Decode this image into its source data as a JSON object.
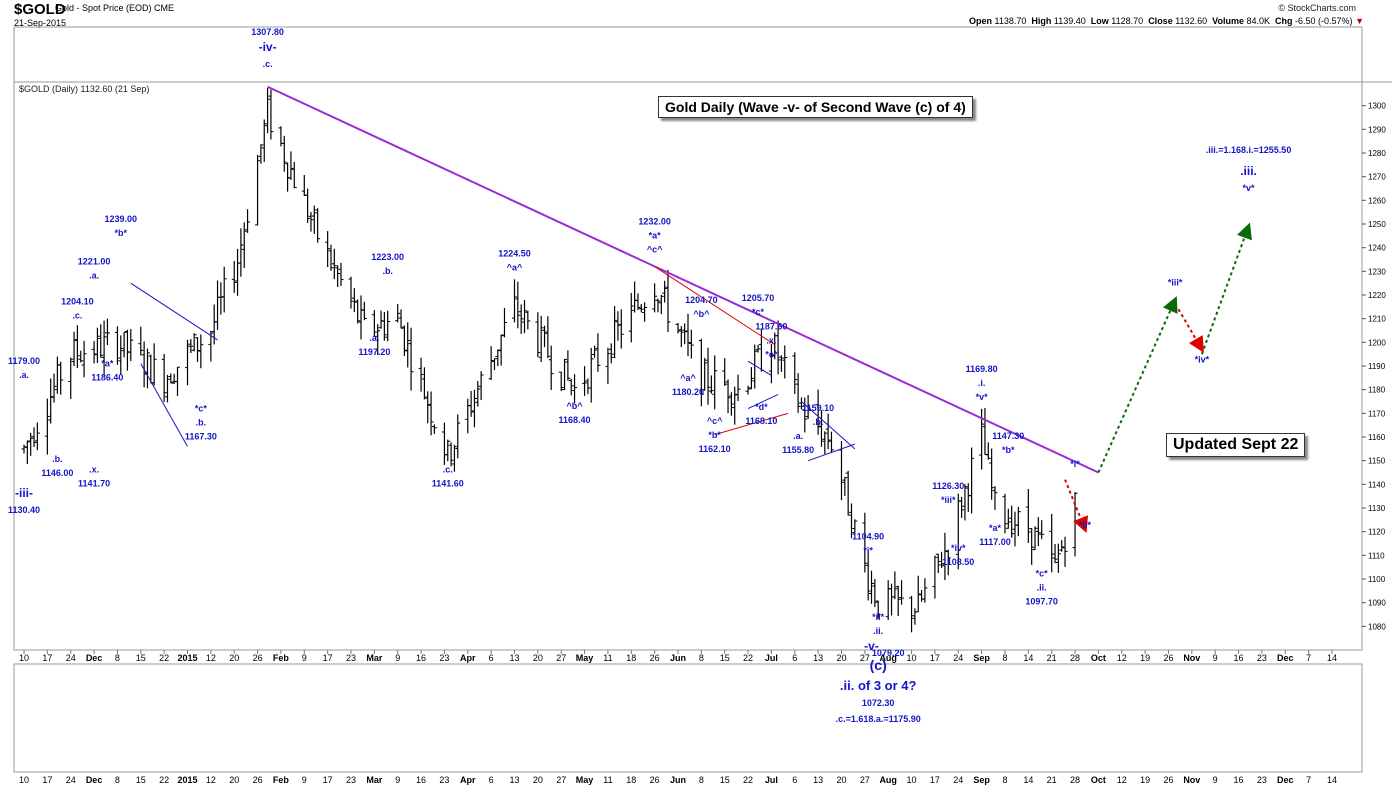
{
  "header": {
    "symbol": "$GOLD",
    "description": "Gold - Spot Price (EOD)",
    "exchange": "CME",
    "date": "21-Sep-2015",
    "brand": "© StockCharts.com",
    "open_label": "Open",
    "open": "1138.70",
    "high_label": "High",
    "high": "1139.40",
    "low_label": "Low",
    "low": "1128.70",
    "close_label": "Close",
    "close": "1132.60",
    "volume_label": "Volume",
    "volume": "84.0K",
    "chg_label": "Chg",
    "chg": "-6.50 (-0.57%)",
    "chg_arrow": "▼"
  },
  "legend_text": "$GOLD (Daily) 1132.60 (21 Sep)",
  "title_box": "Gold Daily (Wave -v- of Second Wave (c) of 4)",
  "updated_box": "Updated Sept 22",
  "colors": {
    "bars": "#000000",
    "annotations": "#1414c8",
    "trendline": "#9a2bd6",
    "red_line": "#e00000",
    "blue_line": "#1414c8",
    "green_arrow": "#0a6a0a",
    "red_arrow": "#e00000"
  },
  "chart_data": {
    "type": "ohlc",
    "ylim": [
      1070,
      1310
    ],
    "y_ticks": [
      1080,
      1090,
      1100,
      1110,
      1120,
      1130,
      1140,
      1150,
      1160,
      1170,
      1180,
      1190,
      1200,
      1210,
      1220,
      1230,
      1240,
      1250,
      1260,
      1270,
      1280,
      1290,
      1300
    ],
    "x_tick_labels": [
      "10",
      "17",
      "24",
      "Dec",
      "8",
      "15",
      "22",
      "2015",
      "12",
      "20",
      "26",
      "Feb",
      "9",
      "17",
      "23",
      "Mar",
      "9",
      "16",
      "23",
      "Apr",
      "6",
      "13",
      "20",
      "27",
      "May",
      "11",
      "18",
      "26",
      "Jun",
      "8",
      "15",
      "22",
      "Jul",
      "6",
      "13",
      "20",
      "27",
      "Aug",
      "10",
      "17",
      "24",
      "Sep",
      "8",
      "14",
      "21",
      "28",
      "Oct",
      "12",
      "19",
      "26",
      "Nov",
      "9",
      "16",
      "23",
      "Dec",
      "7",
      "14"
    ],
    "bold_tick_labels": [
      "Dec",
      "2015",
      "Feb",
      "Mar",
      "Apr",
      "May",
      "Jun",
      "Jul",
      "Aug",
      "Sep",
      "Oct",
      "Nov"
    ],
    "anchors": [
      {
        "date": "2014-11-10",
        "price": 1155
      },
      {
        "date": "2014-11-24",
        "price": 1195
      },
      {
        "date": "2014-12-08",
        "price": 1200
      },
      {
        "date": "2014-12-22",
        "price": 1185
      },
      {
        "date": "2015-01-05",
        "price": 1205
      },
      {
        "date": "2015-01-13",
        "price": 1235
      },
      {
        "date": "2015-01-22",
        "price": 1297
      },
      {
        "date": "2015-02-06",
        "price": 1245
      },
      {
        "date": "2015-02-20",
        "price": 1205
      },
      {
        "date": "2015-03-02",
        "price": 1210
      },
      {
        "date": "2015-03-17",
        "price": 1152
      },
      {
        "date": "2015-04-06",
        "price": 1215
      },
      {
        "date": "2015-04-24",
        "price": 1180
      },
      {
        "date": "2015-05-18",
        "price": 1225
      },
      {
        "date": "2015-06-01",
        "price": 1185
      },
      {
        "date": "2015-06-12",
        "price": 1180
      },
      {
        "date": "2015-06-22",
        "price": 1200
      },
      {
        "date": "2015-07-01",
        "price": 1172
      },
      {
        "date": "2015-07-10",
        "price": 1158
      },
      {
        "date": "2015-07-20",
        "price": 1105
      },
      {
        "date": "2015-07-24",
        "price": 1090
      },
      {
        "date": "2015-08-05",
        "price": 1088
      },
      {
        "date": "2015-08-14",
        "price": 1115
      },
      {
        "date": "2015-08-24",
        "price": 1160
      },
      {
        "date": "2015-08-28",
        "price": 1130
      },
      {
        "date": "2015-09-08",
        "price": 1120
      },
      {
        "date": "2015-09-15",
        "price": 1105
      },
      {
        "date": "2015-09-21",
        "price": 1132
      }
    ],
    "annotations": [
      {
        "t": "-iii-",
        "d": "2014-11-10",
        "p": 1130.4,
        "dy": -10,
        "size": 12
      },
      {
        "t": "1130.40",
        "d": "2014-11-10",
        "p": 1130.4,
        "dy": 6
      },
      {
        "t": "1179.00",
        "d": "2014-11-10",
        "p": 1179,
        "dy": -28
      },
      {
        "t": ".a.",
        "d": "2014-11-10",
        "p": 1179,
        "dy": -14
      },
      {
        "t": ".b.",
        "d": "2014-11-20",
        "p": 1146,
        "dy": -8
      },
      {
        "t": "1146.00",
        "d": "2014-11-20",
        "p": 1146,
        "dy": 6
      },
      {
        "t": "1204.10",
        "d": "2014-11-26",
        "p": 1204.1,
        "dy": -28
      },
      {
        "t": ".c.",
        "d": "2014-11-26",
        "p": 1204.1,
        "dy": -14
      },
      {
        "t": "1221.00",
        "d": "2014-12-01",
        "p": 1221,
        "dy": -28
      },
      {
        "t": ".a.",
        "d": "2014-12-01",
        "p": 1221,
        "dy": -14
      },
      {
        "t": ".x.",
        "d": "2014-12-01",
        "p": 1141.7,
        "dy": -8
      },
      {
        "t": "1141.70",
        "d": "2014-12-01",
        "p": 1141.7,
        "dy": 6
      },
      {
        "t": "1239.00",
        "d": "2014-12-09",
        "p": 1239,
        "dy": -28
      },
      {
        "t": "*b*",
        "d": "2014-12-09",
        "p": 1239,
        "dy": -14
      },
      {
        "t": "*a*",
        "d": "2014-12-05",
        "p": 1186.4,
        "dy": -8
      },
      {
        "t": "1186.40",
        "d": "2014-12-05",
        "p": 1186.4,
        "dy": 6
      },
      {
        "t": "*c*",
        "d": "2015-01-02",
        "p": 1167.3,
        "dy": -8
      },
      {
        "t": ".b.",
        "d": "2015-01-02",
        "p": 1167.3,
        "dy": 6
      },
      {
        "t": "1167.30",
        "d": "2015-01-02",
        "p": 1167.3,
        "dy": 20
      },
      {
        "t": "1307.80",
        "d": "2015-01-22",
        "p": 1307.8,
        "dy": -52
      },
      {
        "t": "-iv-",
        "d": "2015-01-22",
        "p": 1307.8,
        "dy": -36,
        "size": 12
      },
      {
        "t": ".c.",
        "d": "2015-01-22",
        "p": 1307.8,
        "dy": -20
      },
      {
        "t": "1223.00",
        "d": "2015-02-27",
        "p": 1223,
        "dy": -28
      },
      {
        "t": ".b.",
        "d": "2015-02-27",
        "p": 1223,
        "dy": -14
      },
      {
        "t": ".a.",
        "d": "2015-02-23",
        "p": 1197.2,
        "dy": -8
      },
      {
        "t": "1197.20",
        "d": "2015-02-23",
        "p": 1197.2,
        "dy": 6
      },
      {
        "t": ".c.",
        "d": "2015-03-17",
        "p": 1141.6,
        "dy": -8
      },
      {
        "t": "1141.60",
        "d": "2015-03-17",
        "p": 1141.6,
        "dy": 6
      },
      {
        "t": "1224.50",
        "d": "2015-04-06",
        "p": 1224.5,
        "dy": -28
      },
      {
        "t": "^a^",
        "d": "2015-04-06",
        "p": 1224.5,
        "dy": -14
      },
      {
        "t": "^b^",
        "d": "2015-04-24",
        "p": 1168.4,
        "dy": -8
      },
      {
        "t": "1168.40",
        "d": "2015-04-24",
        "p": 1168.4,
        "dy": 6
      },
      {
        "t": "1232.00",
        "d": "2015-05-18",
        "p": 1232,
        "dy": -42
      },
      {
        "t": "*a*",
        "d": "2015-05-18",
        "p": 1232,
        "dy": -28
      },
      {
        "t": "^c^",
        "d": "2015-05-18",
        "p": 1232,
        "dy": -14
      },
      {
        "t": "1204.70",
        "d": "2015-06-01",
        "p": 1204.7,
        "dy": -28
      },
      {
        "t": "^b^",
        "d": "2015-06-01",
        "p": 1204.7,
        "dy": -14
      },
      {
        "t": "^a^",
        "d": "2015-05-28",
        "p": 1180.2,
        "dy": -8
      },
      {
        "t": "1180.20",
        "d": "2015-05-28",
        "p": 1180.2,
        "dy": 6
      },
      {
        "t": "^c^",
        "d": "2015-06-05",
        "p": 1162.1,
        "dy": -8
      },
      {
        "t": "*b*",
        "d": "2015-06-05",
        "p": 1162.1,
        "dy": 6
      },
      {
        "t": "1162.10",
        "d": "2015-06-05",
        "p": 1162.1,
        "dy": 20
      },
      {
        "t": "1205.70",
        "d": "2015-06-18",
        "p": 1205.7,
        "dy": -28
      },
      {
        "t": "*c*",
        "d": "2015-06-18",
        "p": 1205.7,
        "dy": -14
      },
      {
        "t": "1187.60",
        "d": "2015-06-22",
        "p": 1187.6,
        "dy": -42
      },
      {
        "t": ".x.",
        "d": "2015-06-22",
        "p": 1187.6,
        "dy": -28
      },
      {
        "t": "*e*",
        "d": "2015-06-22",
        "p": 1187.6,
        "dy": -14
      },
      {
        "t": "*d*",
        "d": "2015-06-19",
        "p": 1168.1,
        "dy": -8
      },
      {
        "t": "1168.10",
        "d": "2015-06-19",
        "p": 1168.1,
        "dy": 6
      },
      {
        "t": "1159.10",
        "d": "2015-07-06",
        "p": 1159.1,
        "dy": -28
      },
      {
        "t": ".b.",
        "d": "2015-07-06",
        "p": 1159.1,
        "dy": -14
      },
      {
        "t": ".a.",
        "d": "2015-06-30",
        "p": 1155.8,
        "dy": -8
      },
      {
        "t": "1155.80",
        "d": "2015-06-30",
        "p": 1155.8,
        "dy": 6
      },
      {
        "t": "1104.90",
        "d": "2015-07-21",
        "p": 1104.9,
        "dy": -28
      },
      {
        "t": "*i*",
        "d": "2015-07-21",
        "p": 1104.9,
        "dy": -14
      },
      {
        "t": "*ii*",
        "d": "2015-07-24",
        "p": 1079.2,
        "dy": -8
      },
      {
        "t": ".ii.",
        "d": "2015-07-24",
        "p": 1079.2,
        "dy": 6
      },
      {
        "t": "-v-",
        "d": "2015-07-22",
        "p": 1079.2,
        "dy": 22,
        "size": 12
      },
      {
        "t": "1079.20",
        "d": "2015-07-27",
        "p": 1079.2,
        "dy": 28
      },
      {
        "t": "(c)",
        "d": "2015-07-24",
        "p": 1079.2,
        "dy": 42,
        "size": 14
      },
      {
        "t": ".ii. of 3 or 4?",
        "d": "2015-07-24",
        "p": 1079.2,
        "dy": 62,
        "size": 13
      },
      {
        "t": "1072.30",
        "d": "2015-07-24",
        "p": 1079.2,
        "dy": 78
      },
      {
        "t": ".c.=1.618.a.=1175.90",
        "d": "2015-07-24",
        "p": 1079.2,
        "dy": 94
      },
      {
        "t": "1126.30",
        "d": "2015-08-14",
        "p": 1126.3,
        "dy": -28
      },
      {
        "t": "*iii*",
        "d": "2015-08-14",
        "p": 1126.3,
        "dy": -14
      },
      {
        "t": "*iv*",
        "d": "2015-08-17",
        "p": 1108.5,
        "dy": -8
      },
      {
        "t": "1108.50",
        "d": "2015-08-17",
        "p": 1108.5,
        "dy": 6
      },
      {
        "t": "1169.80",
        "d": "2015-08-24",
        "p": 1169.8,
        "dy": -42
      },
      {
        "t": ".i.",
        "d": "2015-08-24",
        "p": 1169.8,
        "dy": -28
      },
      {
        "t": "*v*",
        "d": "2015-08-24",
        "p": 1169.8,
        "dy": -14
      },
      {
        "t": "*a*",
        "d": "2015-08-28",
        "p": 1117,
        "dy": -8
      },
      {
        "t": "1117.00",
        "d": "2015-08-28",
        "p": 1117,
        "dy": 6
      },
      {
        "t": "1147.30",
        "d": "2015-09-01",
        "p": 1147.3,
        "dy": -28
      },
      {
        "t": "*b*",
        "d": "2015-09-01",
        "p": 1147.3,
        "dy": -14
      },
      {
        "t": "*c*",
        "d": "2015-09-11",
        "p": 1097.7,
        "dy": -8
      },
      {
        "t": ".ii.",
        "d": "2015-09-11",
        "p": 1097.7,
        "dy": 6
      },
      {
        "t": "1097.70",
        "d": "2015-09-11",
        "p": 1097.7,
        "dy": 20
      },
      {
        "t": "*i*",
        "d": "2015-09-21",
        "p": 1144,
        "dy": -8
      },
      {
        "t": "*ii*",
        "d": "2015-09-24",
        "p": 1124,
        "dy": 6
      },
      {
        "t": "*iii*",
        "d": "2015-10-21",
        "p": 1218,
        "dy": -14
      },
      {
        "t": "*iv*",
        "d": "2015-10-29",
        "p": 1194,
        "dy": 6
      },
      {
        "t": ".iii.=1.168.i.=1255.50",
        "d": "2015-11-12",
        "p": 1255.5,
        "dy": -58
      },
      {
        "t": ".iii.",
        "d": "2015-11-12",
        "p": 1255.5,
        "dy": -36,
        "size": 12
      },
      {
        "t": "*v*",
        "d": "2015-11-12",
        "p": 1255.5,
        "dy": -20
      }
    ],
    "trendline": {
      "from": [
        "2015-01-22",
        1308
      ],
      "to": [
        "2015-09-28",
        1145
      ]
    },
    "red_line": [
      [
        "2015-05-18",
        1232
      ],
      [
        "2015-06-23",
        1199
      ]
    ],
    "red_line2": [
      [
        "2015-06-05",
        1161
      ],
      [
        "2015-06-27",
        1170
      ]
    ],
    "wedge_lines": [
      [
        [
          "2014-12-12",
          1225
        ],
        [
          "2015-01-07",
          1201
        ]
      ],
      [
        [
          "2014-12-15",
          1191
        ],
        [
          "2014-12-29",
          1156
        ]
      ],
      [
        [
          "2015-06-15",
          1192
        ],
        [
          "2015-06-22",
          1186
        ]
      ],
      [
        [
          "2015-06-15",
          1172
        ],
        [
          "2015-06-24",
          1178
        ]
      ],
      [
        [
          "2015-07-01",
          1175
        ],
        [
          "2015-07-17",
          1155
        ]
      ],
      [
        [
          "2015-07-03",
          1150
        ],
        [
          "2015-07-17",
          1157
        ]
      ]
    ],
    "projection_green": [
      [
        [
          "2015-09-28",
          1145
        ],
        [
          "2015-10-21",
          1218
        ]
      ],
      [
        [
          "2015-10-29",
          1195
        ],
        [
          "2015-11-12",
          1249
        ]
      ]
    ],
    "projection_red": [
      [
        [
          "2015-09-18",
          1142
        ],
        [
          "2015-09-24",
          1121
        ]
      ],
      [
        [
          "2015-10-22",
          1214
        ],
        [
          "2015-10-29",
          1197
        ]
      ]
    ]
  }
}
